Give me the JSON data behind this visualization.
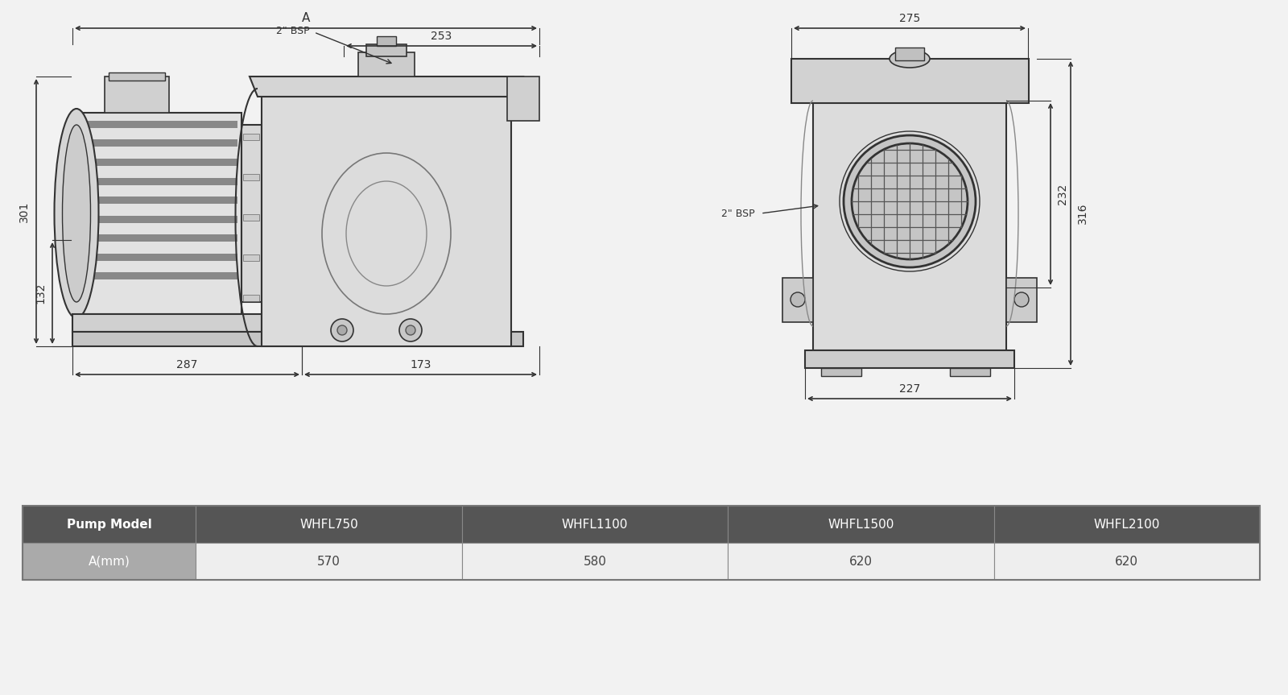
{
  "bg_color": "#f2f2f2",
  "line_color": "#333333",
  "dim_color": "#333333",
  "font_size_dim": 10,
  "font_size_table_header": 11,
  "font_size_table_data": 11,
  "dims_side": {
    "A_label": "A",
    "dim_253": "253",
    "dim_287": "287",
    "dim_173": "173",
    "dim_301": "301",
    "dim_132": "132",
    "bsp_label": "2\" BSP"
  },
  "dims_front": {
    "dim_275": "275",
    "dim_316": "316",
    "dim_232": "232",
    "dim_227": "227",
    "bsp_label": "2\" BSP"
  },
  "table": {
    "header_row": [
      "Pump Model",
      "WHFL750",
      "WHFL1100",
      "WHFL1500",
      "WHFL2100"
    ],
    "data_row": [
      "A(mm)",
      "570",
      "580",
      "620",
      "620"
    ],
    "header_bg": "#555555",
    "header_fg": "#ffffff",
    "data_label_bg": "#aaaaaa",
    "data_label_fg": "#ffffff",
    "data_bg": "#eeeeee",
    "data_fg": "#444444",
    "border_color": "#999999",
    "font_size_header": 11,
    "font_size_data": 11
  }
}
